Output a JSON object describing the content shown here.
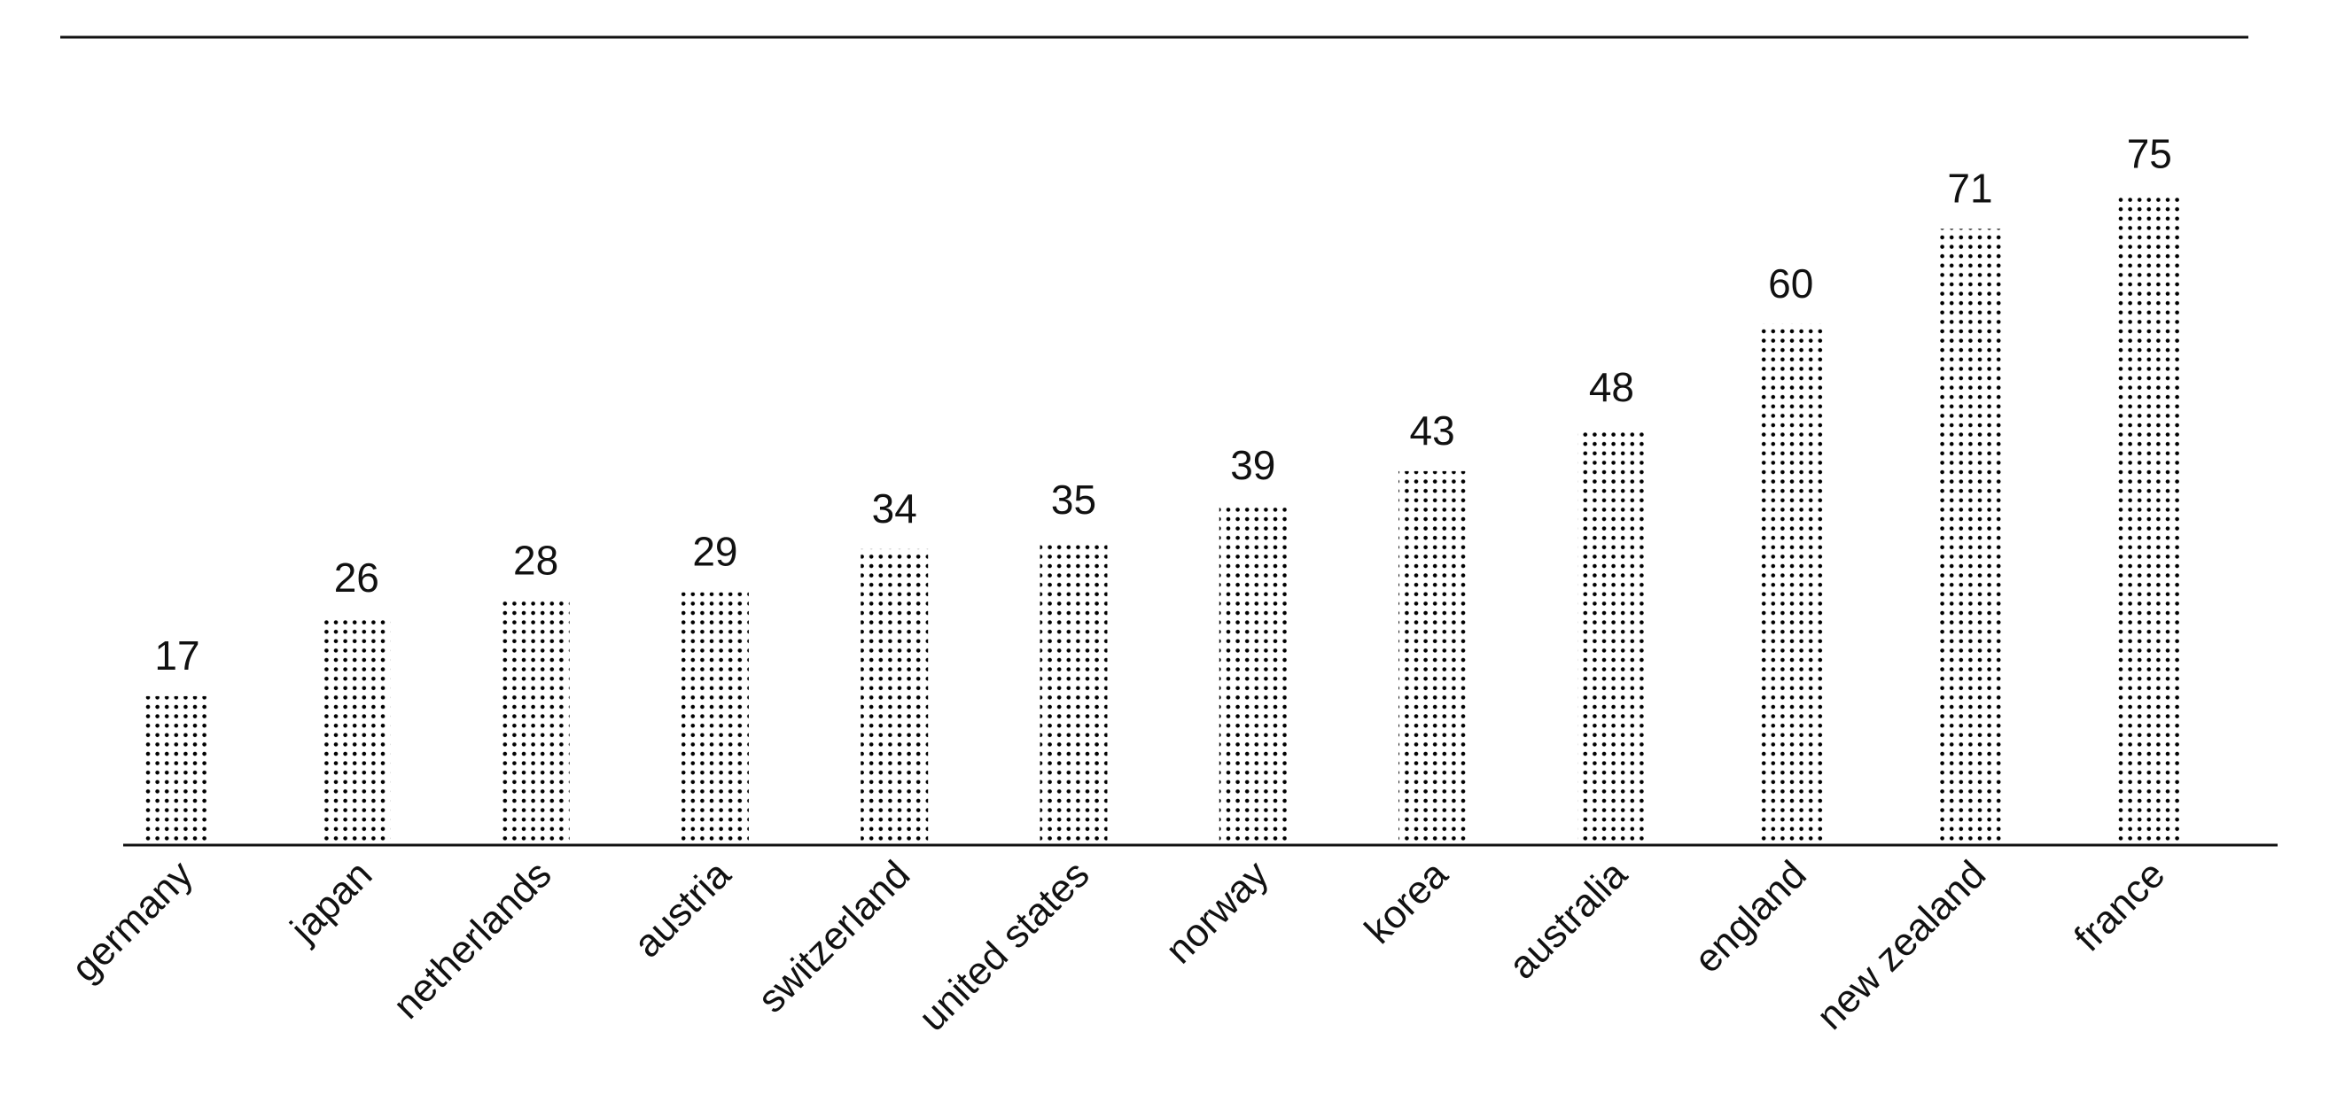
{
  "chart_data": {
    "type": "bar",
    "title": "",
    "xlabel": "",
    "ylabel": "",
    "ylim": [
      0,
      92
    ],
    "grid": false,
    "fill_pattern": "dots",
    "bar_color": "#000000",
    "categories": [
      "germany",
      "japan",
      "netherlands",
      "austria",
      "switzerland",
      "united states",
      "norway",
      "korea",
      "australia",
      "england",
      "new zealand",
      "france"
    ],
    "values": [
      17,
      26,
      28,
      29,
      34,
      35,
      39,
      43,
      48,
      60,
      71,
      75
    ]
  }
}
